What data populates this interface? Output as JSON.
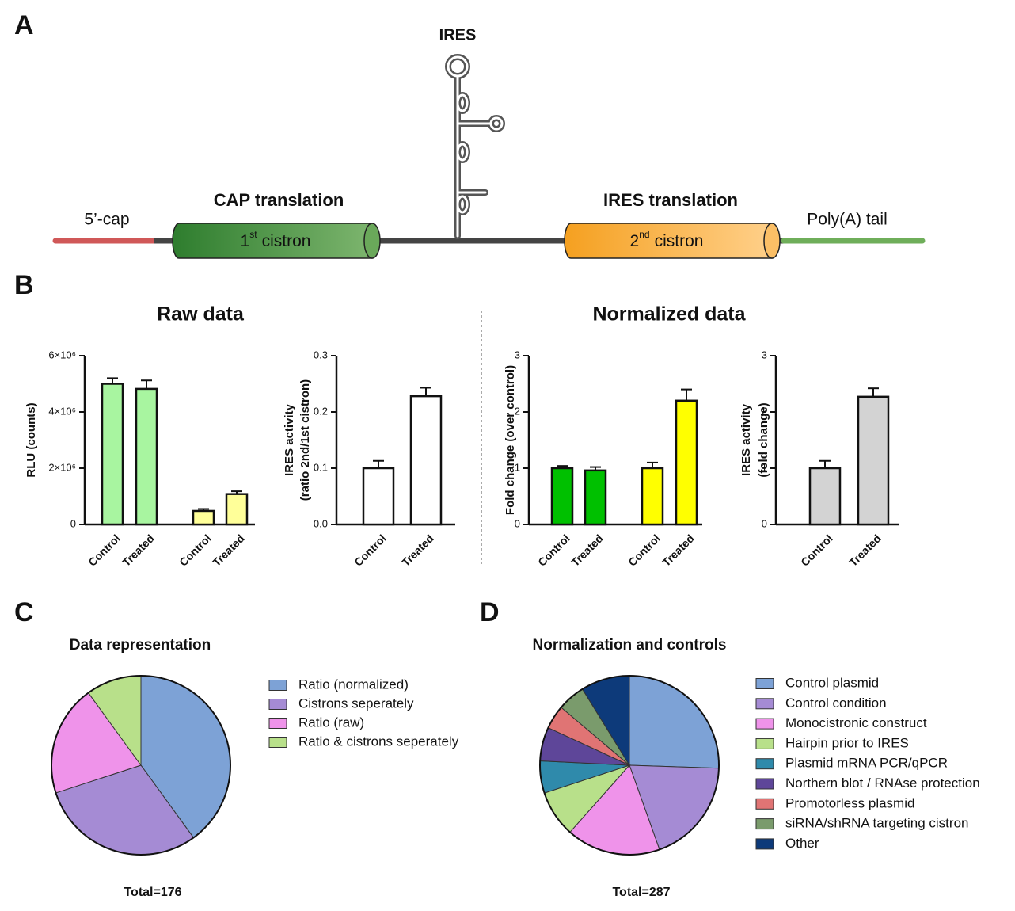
{
  "panel_labels": [
    "A",
    "B",
    "C",
    "D"
  ],
  "diagram": {
    "ires": "IRES",
    "cap_translation": "CAP translation",
    "ires_translation": "IRES translation",
    "cap5": "5’-cap",
    "polya": "Poly(A) tail",
    "cistron1": {
      "number": "1",
      "sup": "st",
      "word": "cistron"
    },
    "cistron2": {
      "number": "2",
      "sup": "nd",
      "word": "cistron"
    }
  },
  "section_titles": [
    "Raw data",
    "Normalized data"
  ],
  "chart_data": [
    {
      "type": "bar",
      "ylabel": [
        "RLU (counts)"
      ],
      "categories": [
        "Control",
        "Treated",
        "Control",
        "Treated"
      ],
      "values": [
        5000000,
        4820000,
        480000,
        1080000
      ],
      "errors": [
        200000,
        300000,
        70000,
        100000
      ],
      "colors": [
        "#a8f5a0",
        "#a8f5a0",
        "#ffff99",
        "#ffff99"
      ],
      "ylim": [
        0,
        6000000
      ],
      "yticks": [
        0,
        {
          "value": 2000000,
          "label": "2×10⁶"
        },
        {
          "value": 4000000,
          "label": "4×10⁶"
        },
        {
          "value": 6000000,
          "label": "6×10⁶"
        }
      ]
    },
    {
      "type": "bar",
      "ylabel": [
        "IRES activity",
        "(ratio 2nd/1st cistron)"
      ],
      "categories": [
        "Control",
        "Treated"
      ],
      "values": [
        0.1,
        0.228
      ],
      "errors": [
        0.013,
        0.015
      ],
      "colors": [
        "#ffffff",
        "#ffffff"
      ],
      "ylim": [
        0,
        0.3
      ],
      "yticks": [
        {
          "value": 0,
          "label": "0.0"
        },
        0.1,
        0.2,
        0.3
      ]
    },
    {
      "type": "bar",
      "ylabel": [
        "Fold change (over control)"
      ],
      "categories": [
        "Control",
        "Treated",
        "Control",
        "Treated"
      ],
      "values": [
        1.0,
        0.96,
        1.0,
        2.2
      ],
      "errors": [
        0.04,
        0.06,
        0.1,
        0.2
      ],
      "colors": [
        "#00c000",
        "#00c000",
        "#ffff00",
        "#ffff00"
      ],
      "ylim": [
        0,
        3
      ],
      "yticks": [
        0,
        1,
        2,
        3
      ]
    },
    {
      "type": "bar",
      "ylabel": [
        "IRES activity",
        "(fold change)"
      ],
      "categories": [
        "Control",
        "Treated"
      ],
      "values": [
        1.0,
        2.27
      ],
      "errors": [
        0.13,
        0.15
      ],
      "colors": [
        "#d3d3d3",
        "#d3d3d3"
      ],
      "ylim": [
        0,
        3
      ],
      "yticks": [
        0,
        1,
        2,
        3
      ]
    },
    {
      "type": "pie",
      "title": "Data representation",
      "total": "Total=176",
      "labels": [
        "Ratio (normalized)",
        "Cistrons seperately",
        "Ratio (raw)",
        "Ratio & cistrons seperately"
      ],
      "values": [
        40,
        30,
        20,
        10
      ],
      "colors": [
        "#7da2d6",
        "#a58bd4",
        "#ef93ea",
        "#b8e08a"
      ]
    },
    {
      "type": "pie",
      "title": "Normalization and controls",
      "total": "Total=287",
      "labels": [
        "Control plasmid",
        "Control condition",
        "Monocistronic construct",
        "Hairpin prior to IRES",
        "Plasmid mRNA PCR/qPCR",
        "Northern blot / RNAse protection",
        "Promotorless plasmid",
        "siRNA/shRNA targeting cistron",
        "Other"
      ],
      "values": [
        25.5,
        19,
        17,
        8.4,
        5.8,
        6.1,
        4.3,
        5,
        8.8
      ],
      "colors": [
        "#7da2d6",
        "#a58bd4",
        "#ef93ea",
        "#b8e08a",
        "#2f8aab",
        "#5e4699",
        "#e07474",
        "#7a9b6c",
        "#0d3a7a"
      ]
    }
  ]
}
